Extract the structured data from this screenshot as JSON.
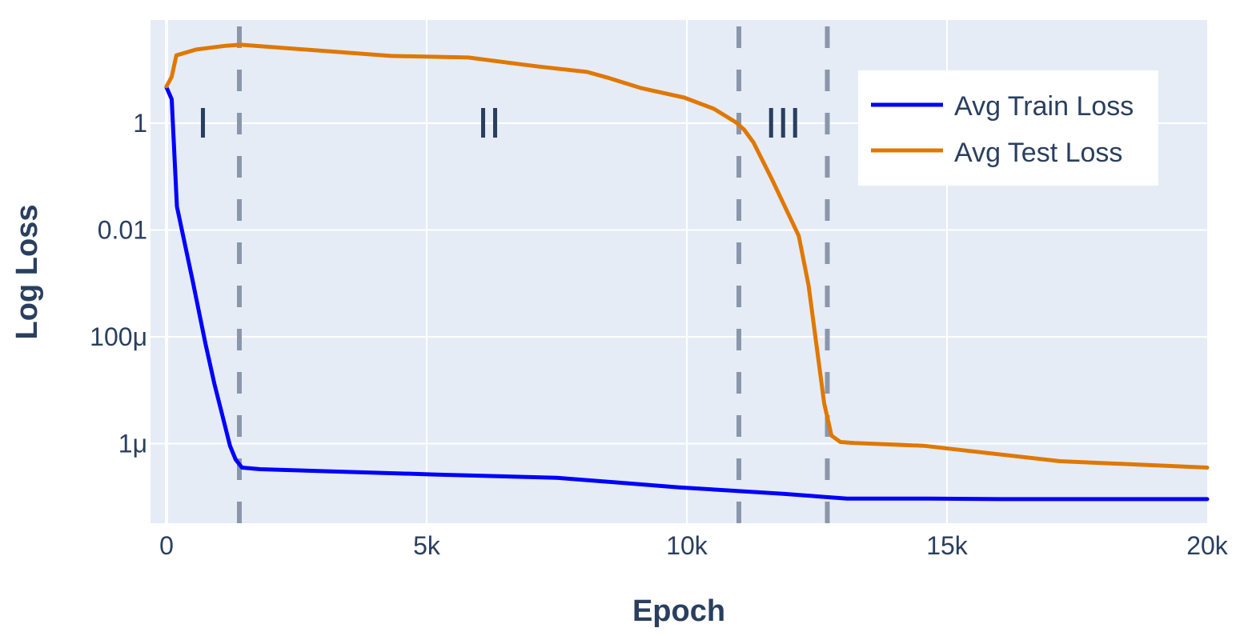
{
  "chart_data": {
    "type": "line",
    "title": "",
    "xlabel": "Epoch",
    "ylabel": "Log Loss",
    "xlim": [
      -300,
      20000
    ],
    "ylim_log10": [
      -7.5,
      2.3
    ],
    "yscale": "log",
    "grid": true,
    "legend_position": "top-right (inside)",
    "x_ticks": [
      {
        "value": 0,
        "label": "0"
      },
      {
        "value": 5000,
        "label": "5k"
      },
      {
        "value": 10000,
        "label": "10k"
      },
      {
        "value": 15000,
        "label": "15k"
      },
      {
        "value": 20000,
        "label": "20k"
      }
    ],
    "y_ticks": [
      {
        "log10": 0,
        "label": "1"
      },
      {
        "log10": -2,
        "label": "0.01"
      },
      {
        "log10": -4,
        "label": "100μ"
      },
      {
        "log10": -6,
        "label": "1μ"
      }
    ],
    "vlines": [
      {
        "x": 1400,
        "style": "dash",
        "color": "#8a97ab"
      },
      {
        "x": 11000,
        "style": "dash",
        "color": "#8a97ab"
      },
      {
        "x": 12700,
        "style": "dash",
        "color": "#8a97ab"
      }
    ],
    "annotations": [
      {
        "text": "I",
        "x": 700,
        "log10": 0
      },
      {
        "text": "II",
        "x": 6200,
        "log10": 0
      },
      {
        "text": "III",
        "x": 11850,
        "log10": 0
      }
    ],
    "series": [
      {
        "name": "Avg Train Loss",
        "color": "#0000ff",
        "x": [
          0,
          100,
          200,
          500,
          750,
          920,
          1030,
          1220,
          1330,
          1450,
          1800,
          5200,
          7500,
          9850,
          11850,
          13080,
          14650,
          16000,
          20000
        ],
        "log10": [
          0.67,
          0.45,
          -1.56,
          -2.94,
          -4.14,
          -4.88,
          -5.3,
          -6.04,
          -6.3,
          -6.45,
          -6.48,
          -6.58,
          -6.64,
          -6.82,
          -6.94,
          -7.03,
          -7.03,
          -7.04,
          -7.04
        ]
      },
      {
        "name": "Avg Test Loss",
        "color": "#e07800",
        "x": [
          0,
          100,
          190,
          570,
          1140,
          1420,
          4310,
          5800,
          7150,
          8080,
          8490,
          9110,
          9950,
          10520,
          10950,
          11100,
          11280,
          11640,
          12020,
          12150,
          12340,
          12640,
          12780,
          12950,
          13220,
          14550,
          15090,
          17170,
          20000
        ],
        "log10": [
          0.69,
          0.87,
          1.27,
          1.38,
          1.45,
          1.47,
          1.26,
          1.23,
          1.06,
          0.96,
          0.85,
          0.66,
          0.48,
          0.27,
          0.01,
          -0.12,
          -0.36,
          -1.06,
          -1.84,
          -2.11,
          -3.04,
          -5.25,
          -5.85,
          -5.97,
          -5.99,
          -6.04,
          -6.1,
          -6.33,
          -6.45
        ]
      }
    ]
  },
  "legend": {
    "items": [
      {
        "label": "Avg Train Loss",
        "color": "#0000ff"
      },
      {
        "label": "Avg Test Loss",
        "color": "#e07800"
      }
    ]
  },
  "colors": {
    "plot_bg": "#e5ecf6",
    "grid": "#ffffff",
    "text": "#2a3f5f",
    "vline": "#8a97ab"
  }
}
